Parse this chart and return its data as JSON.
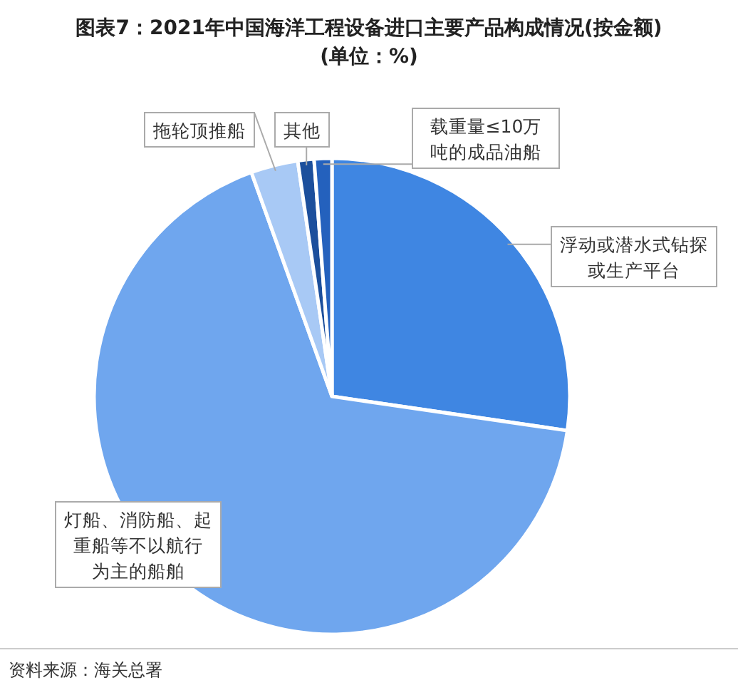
{
  "chart_data": {
    "type": "pie",
    "title": "图表7：2021年中国海洋工程设备进口主要产品构成情况(按金额)",
    "subtitle": "(单位：%)",
    "categories": [
      "浮动或潜水式钻探或生产平台",
      "灯船、消防船、起重船等不以航行为主的船舶",
      "拖轮顶推船",
      "其他",
      "载重量≤10万吨的成品油船"
    ],
    "values": [
      27.3,
      67.2,
      3.2,
      1.1,
      1.2
    ],
    "colors": [
      "#3f86e2",
      "#6fa6ee",
      "#a8c9f5",
      "#1c4f9c",
      "#2461bd"
    ],
    "annotations": [
      "资料来源：海关总署"
    ]
  }
}
